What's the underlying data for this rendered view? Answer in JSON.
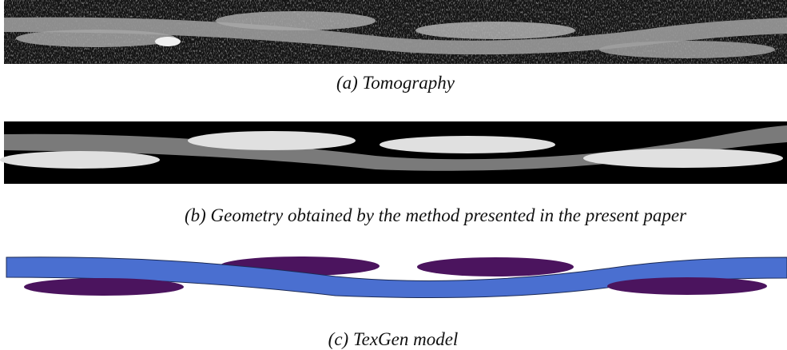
{
  "panels": [
    {
      "caption": "(a) Tomography"
    },
    {
      "caption": "(b) Geometry obtained by the method presented in the present paper"
    },
    {
      "caption": "(c) TexGen model"
    }
  ]
}
